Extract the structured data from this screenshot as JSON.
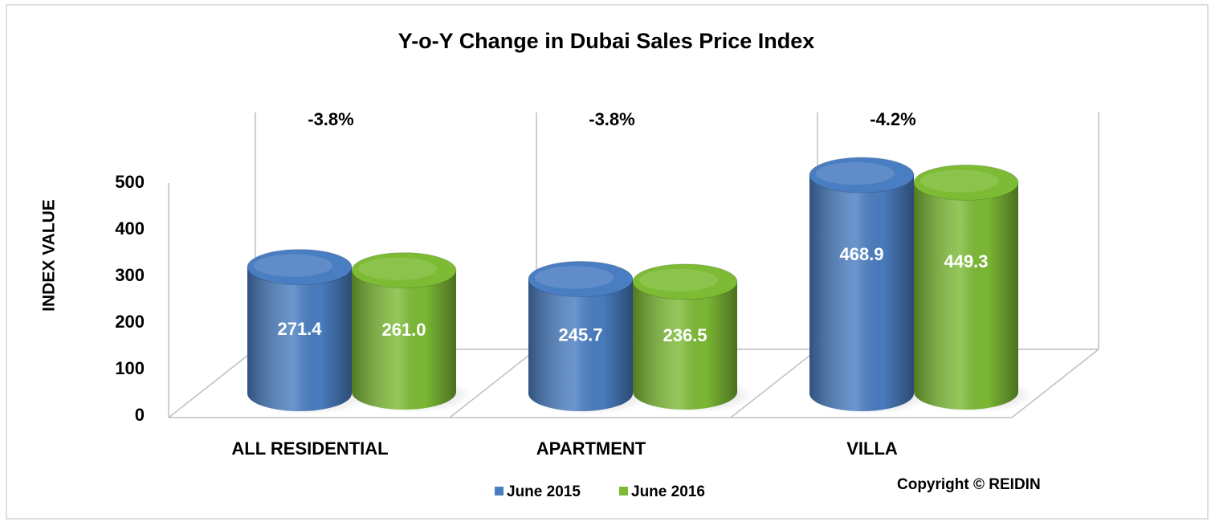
{
  "chart_data": {
    "type": "bar3d",
    "title": "Y-o-Y Change in Dubai Sales Price Index",
    "y_label": "INDEX VALUE",
    "categories": [
      "ALL RESIDENTIAL",
      "APARTMENT",
      "VILLA"
    ],
    "series": [
      {
        "name": "June 2015",
        "color": "#4a7ec2",
        "values": [
          271.4,
          245.7,
          468.9
        ]
      },
      {
        "name": "June 2016",
        "color": "#7dbb35",
        "values": [
          261.0,
          236.5,
          449.3
        ],
        "value_labels": [
          "261.0",
          "236.5",
          "449.3"
        ]
      }
    ],
    "annotations": [
      "-3.8%",
      "-3.8%",
      "-4.2%"
    ],
    "copyright": "Copyright © REIDIN",
    "ylim": [
      0,
      500
    ],
    "yticks": [
      0,
      100,
      200,
      300,
      400,
      500
    ],
    "grid": false
  }
}
